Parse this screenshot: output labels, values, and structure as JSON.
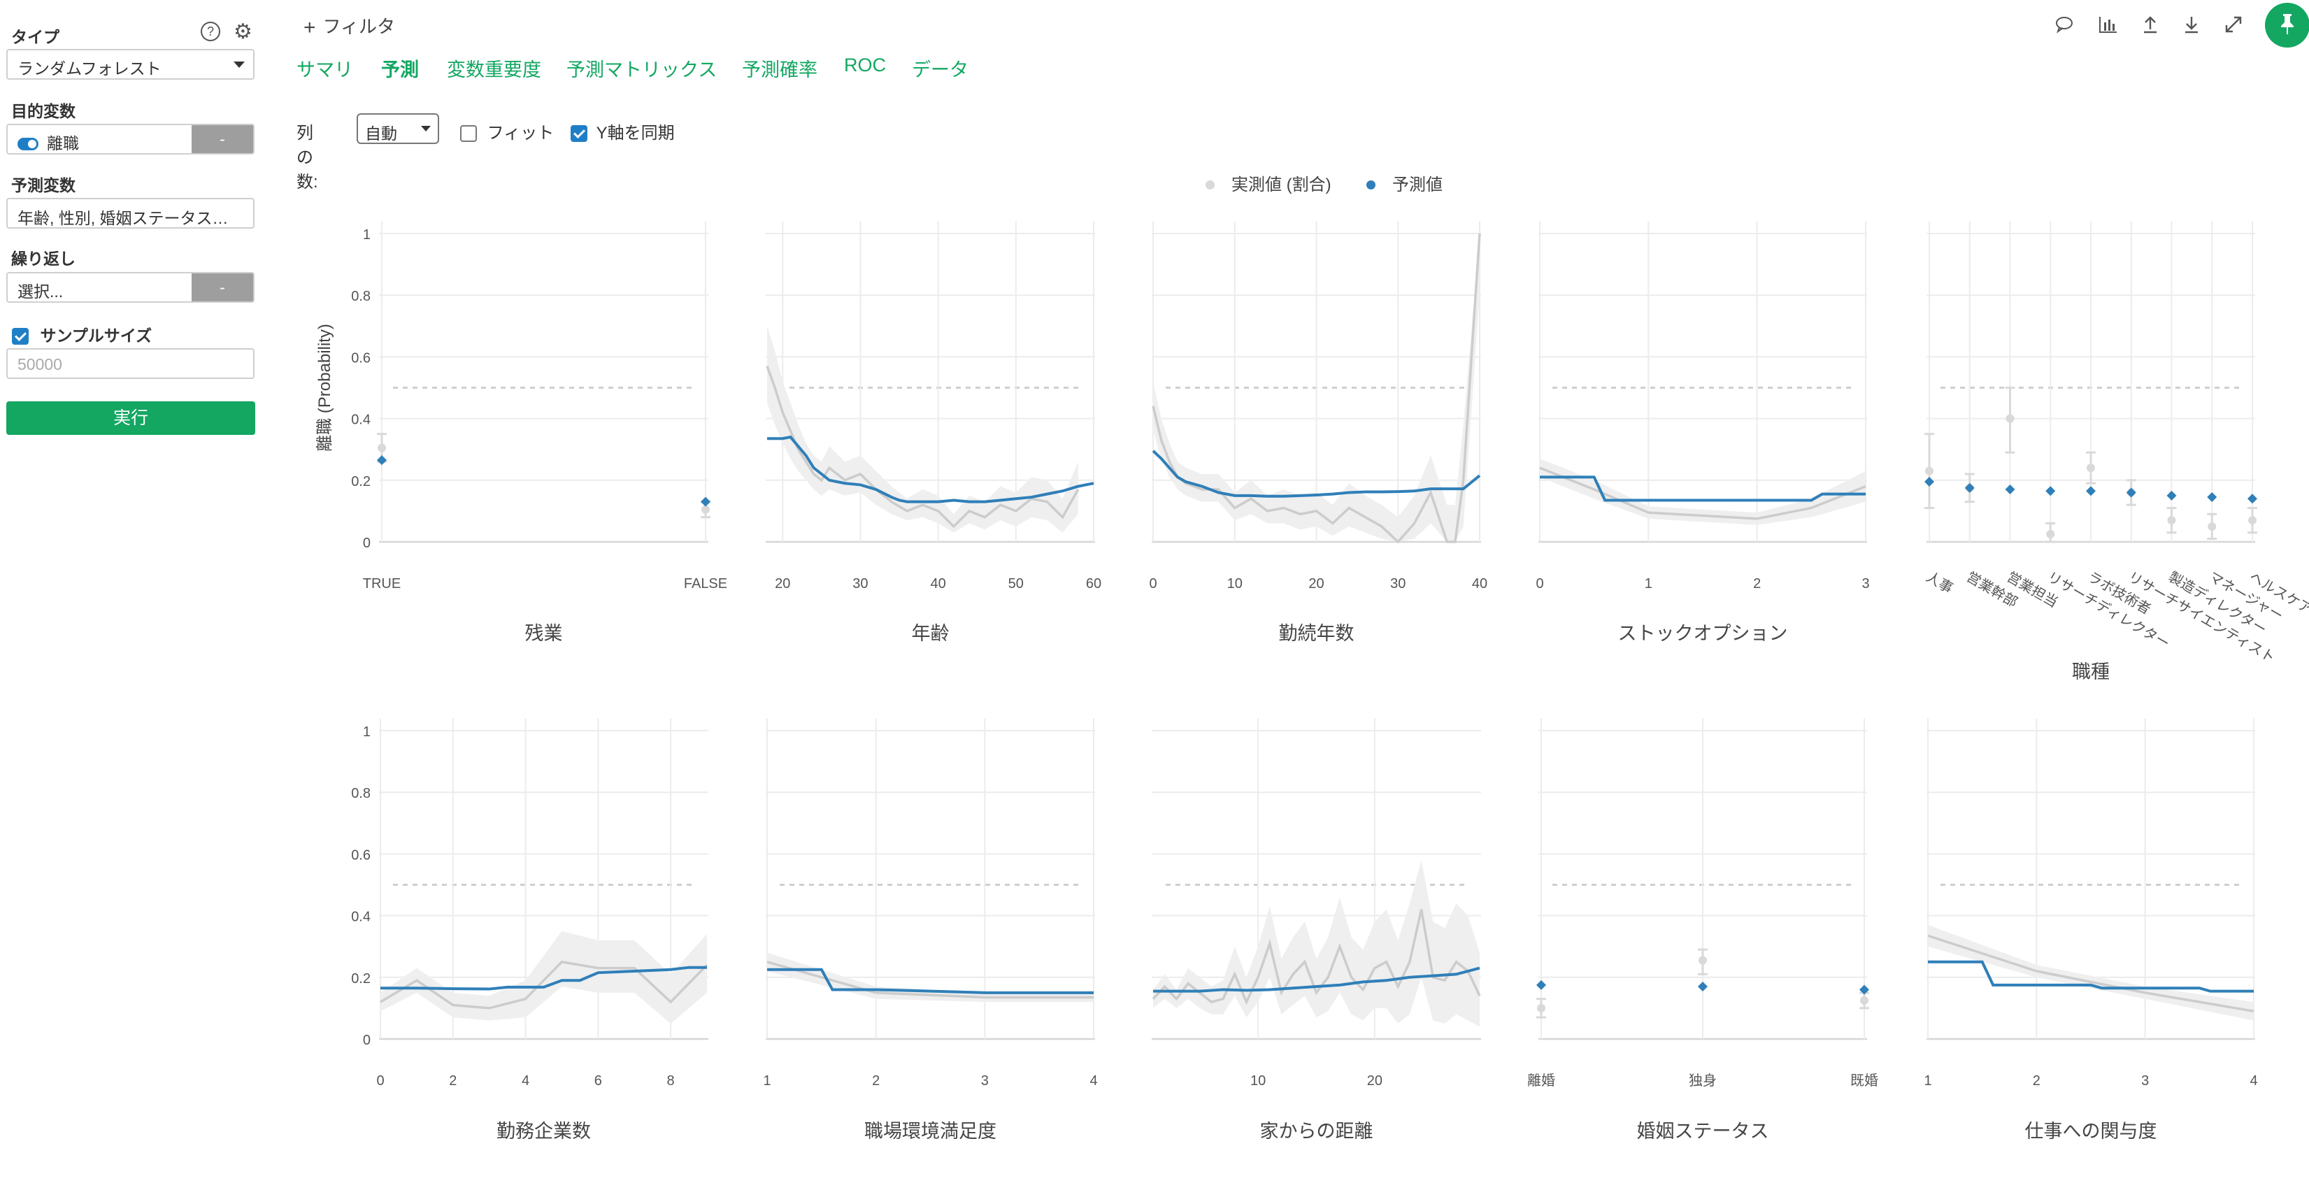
{
  "sidebar": {
    "type_label": "タイプ",
    "type_value": "ランダムフォレスト",
    "help_icon": "question-circle-icon",
    "settings_icon": "gear-icon",
    "target_label": "目的変数",
    "target_value": "離職",
    "target_button": "-",
    "predictor_label": "予測変数",
    "predictor_value": "年齢, 性別, 婚姻ステータス…",
    "repeat_label": "繰り返し",
    "repeat_value": "選択...",
    "repeat_button": "-",
    "sample_label": "サンプルサイズ",
    "sample_placeholder": "50000",
    "run_label": "実行"
  },
  "header": {
    "filter_label": "フィルタ",
    "tabs": [
      {
        "label": "サマリ"
      },
      {
        "label": "予測"
      },
      {
        "label": "変数重要度"
      },
      {
        "label": "予測マトリックス"
      },
      {
        "label": "予測確率"
      },
      {
        "label": "ROC"
      },
      {
        "label": "データ"
      }
    ],
    "active_tab": "予測",
    "icons": [
      "comment-icon",
      "bar-chart-icon",
      "upload-icon",
      "download-icon",
      "expand-icon",
      "pin-icon"
    ]
  },
  "options": {
    "columns_label": "列の数:",
    "columns_value": "自動",
    "fit_label": "フィット",
    "fit_checked": false,
    "sync_y_label": "Y軸を同期",
    "sync_y_checked": true
  },
  "legend": {
    "actual": "実測値 (割合)",
    "predicted": "予測値"
  },
  "colors": {
    "accent": "#13a762",
    "predicted": "#2f7fb8",
    "actual": "#cccccc",
    "band": "#efefef"
  },
  "chart_data": [
    {
      "type": "scatter",
      "title": "",
      "xlabel": "残業",
      "ylabel": "離職 (Probability)",
      "ylim": [
        0,
        1
      ],
      "threshold": 0.5,
      "categories": [
        "TRUE",
        "FALSE"
      ],
      "series": [
        {
          "name": "予測値",
          "values": [
            0.265,
            0.13
          ]
        },
        {
          "name": "実測値 (割合)",
          "values": [
            0.305,
            0.105
          ],
          "err_lo": [
            0.26,
            0.08
          ],
          "err_hi": [
            0.35,
            0.13
          ]
        }
      ]
    },
    {
      "type": "line",
      "title": "",
      "xlabel": "年齢",
      "ylim": [
        0,
        1
      ],
      "threshold": 0.5,
      "xlim": [
        18,
        60
      ],
      "xticks": [
        20,
        30,
        40,
        50,
        60
      ],
      "series": [
        {
          "name": "予測値",
          "x": [
            18,
            20,
            21,
            22,
            23,
            24,
            25,
            26,
            27,
            28,
            30,
            32,
            34,
            35,
            36,
            38,
            40,
            42,
            44,
            46,
            48,
            50,
            52,
            54,
            56,
            58,
            60
          ],
          "values": [
            0.335,
            0.335,
            0.34,
            0.31,
            0.28,
            0.24,
            0.22,
            0.2,
            0.195,
            0.19,
            0.185,
            0.17,
            0.145,
            0.135,
            0.13,
            0.13,
            0.13,
            0.135,
            0.13,
            0.13,
            0.135,
            0.14,
            0.145,
            0.155,
            0.165,
            0.18,
            0.19
          ]
        },
        {
          "name": "実測値 (割合)",
          "x": [
            18,
            19,
            20,
            21,
            22,
            23,
            24,
            25,
            26,
            28,
            30,
            32,
            34,
            36,
            38,
            40,
            42,
            44,
            46,
            48,
            50,
            52,
            54,
            56,
            58
          ],
          "values": [
            0.57,
            0.5,
            0.42,
            0.36,
            0.3,
            0.26,
            0.22,
            0.2,
            0.24,
            0.2,
            0.22,
            0.17,
            0.13,
            0.1,
            0.12,
            0.1,
            0.05,
            0.1,
            0.08,
            0.12,
            0.1,
            0.14,
            0.13,
            0.08,
            0.17
          ],
          "band_lo": [
            0.45,
            0.38,
            0.32,
            0.27,
            0.23,
            0.2,
            0.17,
            0.15,
            0.17,
            0.15,
            0.16,
            0.12,
            0.09,
            0.07,
            0.08,
            0.06,
            0.03,
            0.06,
            0.04,
            0.07,
            0.05,
            0.08,
            0.07,
            0.03,
            0.09
          ],
          "band_hi": [
            0.7,
            0.62,
            0.52,
            0.45,
            0.38,
            0.32,
            0.28,
            0.26,
            0.31,
            0.26,
            0.28,
            0.23,
            0.18,
            0.14,
            0.17,
            0.15,
            0.09,
            0.15,
            0.13,
            0.18,
            0.16,
            0.21,
            0.2,
            0.14,
            0.26
          ]
        }
      ]
    },
    {
      "type": "line",
      "title": "",
      "xlabel": "勤続年数",
      "ylim": [
        0,
        1
      ],
      "threshold": 0.5,
      "xlim": [
        0,
        40
      ],
      "xticks": [
        0,
        10,
        20,
        30,
        40
      ],
      "series": [
        {
          "name": "予測値",
          "x": [
            0,
            1,
            2,
            3,
            4,
            6,
            8,
            10,
            12,
            14,
            16,
            18,
            20,
            22,
            24,
            26,
            28,
            30,
            32,
            34,
            36,
            38,
            40
          ],
          "values": [
            0.295,
            0.27,
            0.24,
            0.21,
            0.195,
            0.18,
            0.16,
            0.15,
            0.15,
            0.148,
            0.148,
            0.15,
            0.152,
            0.155,
            0.16,
            0.162,
            0.162,
            0.163,
            0.165,
            0.172,
            0.172,
            0.172,
            0.215
          ]
        },
        {
          "name": "実測値 (割合)",
          "x": [
            0,
            1,
            2,
            3,
            4,
            6,
            8,
            10,
            12,
            14,
            16,
            18,
            20,
            22,
            24,
            26,
            28,
            30,
            32,
            34,
            36,
            37,
            38,
            40
          ],
          "values": [
            0.44,
            0.33,
            0.26,
            0.21,
            0.19,
            0.17,
            0.17,
            0.11,
            0.14,
            0.1,
            0.11,
            0.09,
            0.1,
            0.06,
            0.11,
            0.08,
            0.05,
            0.0,
            0.06,
            0.16,
            0.0,
            0.0,
            0.2,
            1.0
          ],
          "band_lo": [
            0.36,
            0.27,
            0.21,
            0.17,
            0.15,
            0.13,
            0.13,
            0.07,
            0.09,
            0.06,
            0.06,
            0.04,
            0.05,
            0.02,
            0.05,
            0.03,
            0.01,
            0.0,
            0.01,
            0.06,
            0.0,
            0.0,
            0.05,
            0.8
          ],
          "band_hi": [
            0.52,
            0.4,
            0.32,
            0.26,
            0.24,
            0.22,
            0.22,
            0.16,
            0.2,
            0.15,
            0.17,
            0.15,
            0.16,
            0.12,
            0.19,
            0.15,
            0.12,
            0.08,
            0.15,
            0.28,
            0.12,
            0.12,
            0.38,
            1.0
          ]
        }
      ]
    },
    {
      "type": "line",
      "title": "",
      "xlabel": "ストックオプション",
      "ylim": [
        0,
        1
      ],
      "threshold": 0.5,
      "xlim": [
        0,
        3
      ],
      "xticks": [
        0,
        1,
        2,
        3
      ],
      "series": [
        {
          "name": "予測値",
          "x": [
            0,
            0.5,
            0.6,
            1,
            1.5,
            2,
            2.5,
            2.6,
            3
          ],
          "values": [
            0.21,
            0.21,
            0.135,
            0.135,
            0.135,
            0.135,
            0.135,
            0.155,
            0.155
          ]
        },
        {
          "name": "実測値 (割合)",
          "x": [
            0,
            0.5,
            1,
            1.5,
            2,
            2.5,
            3
          ],
          "values": [
            0.24,
            0.17,
            0.095,
            0.085,
            0.075,
            0.11,
            0.18
          ],
          "band_lo": [
            0.21,
            0.14,
            0.075,
            0.065,
            0.055,
            0.08,
            0.13
          ],
          "band_hi": [
            0.27,
            0.2,
            0.115,
            0.105,
            0.095,
            0.14,
            0.23
          ]
        }
      ]
    },
    {
      "type": "scatter",
      "title": "",
      "xlabel": "職種",
      "ylim": [
        0,
        1
      ],
      "threshold": 0.5,
      "categories": [
        "人事",
        "営業幹部",
        "営業担当",
        "リサーチディレクター",
        "ラボ技術者",
        "リサーチサイエンティスト",
        "製造ディレクター",
        "マネージャー",
        "ヘルスケア"
      ],
      "series": [
        {
          "name": "予測値",
          "values": [
            0.195,
            0.175,
            0.17,
            0.165,
            0.165,
            0.16,
            0.15,
            0.145,
            0.14
          ]
        },
        {
          "name": "実測値 (割合)",
          "values": [
            0.23,
            0.175,
            0.4,
            0.025,
            0.24,
            0.16,
            0.07,
            0.05,
            0.07
          ],
          "err_lo": [
            0.11,
            0.13,
            0.29,
            0.0,
            0.19,
            0.12,
            0.03,
            0.01,
            0.03
          ],
          "err_hi": [
            0.35,
            0.22,
            0.5,
            0.06,
            0.29,
            0.2,
            0.11,
            0.09,
            0.11
          ]
        }
      ]
    },
    {
      "type": "line",
      "title": "",
      "xlabel": "勤務企業数",
      "ylim": [
        0,
        1
      ],
      "threshold": 0.5,
      "xlim": [
        0,
        9
      ],
      "xticks": [
        0,
        2,
        4,
        6,
        8
      ],
      "series": [
        {
          "name": "予測値",
          "x": [
            0,
            1,
            2,
            3,
            3.5,
            4,
            4.5,
            5,
            5.5,
            6,
            7,
            8,
            8.5,
            9
          ],
          "values": [
            0.165,
            0.165,
            0.163,
            0.162,
            0.168,
            0.168,
            0.168,
            0.19,
            0.19,
            0.215,
            0.22,
            0.225,
            0.232,
            0.232
          ]
        },
        {
          "name": "実測値 (割合)",
          "x": [
            0,
            1,
            2,
            3,
            4,
            5,
            6,
            7,
            8,
            9
          ],
          "values": [
            0.12,
            0.19,
            0.11,
            0.1,
            0.13,
            0.25,
            0.23,
            0.23,
            0.12,
            0.24
          ],
          "band_lo": [
            0.09,
            0.15,
            0.07,
            0.06,
            0.07,
            0.17,
            0.15,
            0.15,
            0.05,
            0.15
          ],
          "band_hi": [
            0.15,
            0.23,
            0.15,
            0.14,
            0.19,
            0.35,
            0.32,
            0.32,
            0.21,
            0.34
          ]
        }
      ]
    },
    {
      "type": "line",
      "title": "",
      "xlabel": "職場環境満足度",
      "ylim": [
        0,
        1
      ],
      "threshold": 0.5,
      "xlim": [
        1,
        4
      ],
      "xticks": [
        1,
        2,
        3,
        4
      ],
      "series": [
        {
          "name": "予測値",
          "x": [
            1,
            1.5,
            1.6,
            2,
            3,
            4
          ],
          "values": [
            0.225,
            0.225,
            0.16,
            0.16,
            0.15,
            0.15
          ]
        },
        {
          "name": "実測値 (割合)",
          "x": [
            1,
            2,
            3,
            4
          ],
          "values": [
            0.25,
            0.15,
            0.135,
            0.135
          ],
          "band_lo": [
            0.22,
            0.13,
            0.12,
            0.12
          ],
          "band_hi": [
            0.28,
            0.17,
            0.15,
            0.15
          ]
        }
      ]
    },
    {
      "type": "line",
      "title": "",
      "xlabel": "家からの距離",
      "ylim": [
        0,
        1
      ],
      "threshold": 0.5,
      "xlim": [
        1,
        29
      ],
      "xticks": [
        10,
        20
      ],
      "series": [
        {
          "name": "予測値",
          "x": [
            1,
            3,
            5,
            7,
            9,
            11,
            13,
            15,
            17,
            19,
            21,
            23,
            25,
            27,
            29
          ],
          "values": [
            0.155,
            0.155,
            0.155,
            0.16,
            0.158,
            0.16,
            0.165,
            0.17,
            0.175,
            0.185,
            0.19,
            0.2,
            0.205,
            0.21,
            0.23
          ]
        },
        {
          "name": "実測値 (割合)",
          "x": [
            1,
            2,
            3,
            4,
            5,
            6,
            7,
            8,
            9,
            10,
            11,
            12,
            13,
            14,
            15,
            16,
            17,
            18,
            19,
            20,
            21,
            22,
            23,
            24,
            25,
            26,
            27,
            28,
            29
          ],
          "values": [
            0.13,
            0.17,
            0.13,
            0.18,
            0.15,
            0.12,
            0.13,
            0.21,
            0.12,
            0.2,
            0.31,
            0.15,
            0.21,
            0.25,
            0.15,
            0.2,
            0.3,
            0.2,
            0.16,
            0.23,
            0.25,
            0.17,
            0.25,
            0.42,
            0.2,
            0.19,
            0.25,
            0.22,
            0.14
          ],
          "band_lo": [
            0.1,
            0.13,
            0.1,
            0.13,
            0.1,
            0.08,
            0.08,
            0.14,
            0.07,
            0.12,
            0.2,
            0.08,
            0.11,
            0.14,
            0.07,
            0.09,
            0.15,
            0.08,
            0.06,
            0.1,
            0.1,
            0.05,
            0.08,
            0.2,
            0.06,
            0.05,
            0.08,
            0.06,
            0.04
          ],
          "band_hi": [
            0.16,
            0.21,
            0.16,
            0.23,
            0.2,
            0.17,
            0.19,
            0.3,
            0.2,
            0.3,
            0.43,
            0.26,
            0.33,
            0.38,
            0.26,
            0.33,
            0.46,
            0.33,
            0.29,
            0.38,
            0.42,
            0.32,
            0.44,
            0.58,
            0.38,
            0.36,
            0.44,
            0.4,
            0.28
          ]
        }
      ]
    },
    {
      "type": "scatter",
      "title": "",
      "xlabel": "婚姻ステータス",
      "ylim": [
        0,
        1
      ],
      "threshold": 0.5,
      "categories": [
        "離婚",
        "独身",
        "既婚"
      ],
      "series": [
        {
          "name": "予測値",
          "values": [
            0.175,
            0.17,
            0.16
          ]
        },
        {
          "name": "実測値 (割合)",
          "values": [
            0.1,
            0.255,
            0.125
          ],
          "err_lo": [
            0.07,
            0.21,
            0.1
          ],
          "err_hi": [
            0.13,
            0.29,
            0.15
          ]
        }
      ]
    },
    {
      "type": "line",
      "title": "",
      "xlabel": "仕事への関与度",
      "ylim": [
        0,
        1
      ],
      "threshold": 0.5,
      "xlim": [
        1,
        4
      ],
      "xticks": [
        1,
        2,
        3,
        4
      ],
      "series": [
        {
          "name": "予測値",
          "x": [
            1,
            1.5,
            1.6,
            2,
            2.5,
            2.6,
            3,
            3.5,
            3.6,
            4
          ],
          "values": [
            0.25,
            0.25,
            0.175,
            0.175,
            0.175,
            0.165,
            0.165,
            0.165,
            0.155,
            0.155
          ]
        },
        {
          "name": "実測値 (割合)",
          "x": [
            1,
            2,
            3,
            4
          ],
          "values": [
            0.335,
            0.22,
            0.15,
            0.09
          ],
          "band_lo": [
            0.3,
            0.2,
            0.13,
            0.06
          ],
          "band_hi": [
            0.37,
            0.24,
            0.17,
            0.12
          ]
        }
      ]
    }
  ]
}
